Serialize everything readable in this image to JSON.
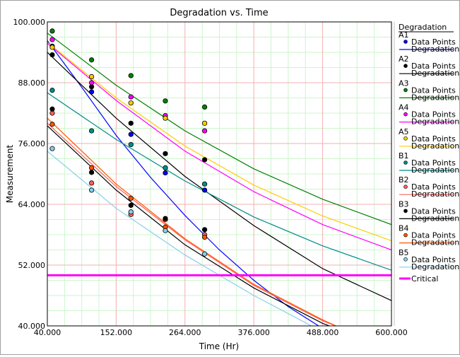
{
  "chart_data": {
    "type": "scatter",
    "title": "Degradation vs. Time",
    "xlabel": "Time (Hr)",
    "ylabel": "Measurement",
    "xlim": [
      40,
      600
    ],
    "ylim": [
      40,
      100
    ],
    "x_ticks": [
      "40.000",
      "152.000",
      "264.000",
      "376.000",
      "488.000",
      "600.000"
    ],
    "y_ticks": [
      "40.000",
      "52.000",
      "64.000",
      "76.000",
      "88.000",
      "100.000"
    ],
    "grid": true,
    "legend_title": "Degradation",
    "legend_position": "right",
    "point_label": "Data Points",
    "line_label": "Degradation",
    "critical": {
      "name": "Critical",
      "value": 50,
      "color": "#ff00ff"
    },
    "series": [
      {
        "name": "A1",
        "color": "#0000ff",
        "points": [
          [
            48,
            95.2
          ],
          [
            112,
            86.2
          ],
          [
            176,
            77.8
          ],
          [
            232,
            70.2
          ],
          [
            296,
            66.8
          ]
        ],
        "fit": [
          [
            40,
            96.3
          ],
          [
            96,
            87.1
          ],
          [
            152,
            77.6
          ],
          [
            208,
            69.3
          ],
          [
            264,
            61.8
          ],
          [
            320,
            55.0
          ],
          [
            376,
            49.0
          ],
          [
            432,
            43.8
          ],
          [
            488,
            39.5
          ]
        ]
      },
      {
        "name": "A2",
        "color": "#000000",
        "points": [
          [
            48,
            93.5
          ],
          [
            112,
            87.2
          ],
          [
            176,
            80.0
          ],
          [
            232,
            74.0
          ],
          [
            296,
            72.8
          ]
        ],
        "fit": [
          [
            40,
            94.0
          ],
          [
            152,
            81.0
          ],
          [
            264,
            69.5
          ],
          [
            376,
            59.8
          ],
          [
            488,
            51.3
          ],
          [
            600,
            45.0
          ]
        ]
      },
      {
        "name": "A3",
        "color": "#008000",
        "points": [
          [
            48,
            98.2
          ],
          [
            112,
            92.5
          ],
          [
            176,
            89.4
          ],
          [
            232,
            84.4
          ],
          [
            296,
            83.2
          ]
        ],
        "fit": [
          [
            40,
            97.8
          ],
          [
            152,
            87.5
          ],
          [
            264,
            78.5
          ],
          [
            376,
            71.0
          ],
          [
            488,
            65.0
          ],
          [
            600,
            60.0
          ]
        ]
      },
      {
        "name": "A4",
        "color": "#ff00ff",
        "points": [
          [
            48,
            96.5
          ],
          [
            112,
            88.0
          ],
          [
            176,
            85.2
          ],
          [
            232,
            81.5
          ],
          [
            296,
            78.5
          ]
        ],
        "fit": [
          [
            40,
            95.8
          ],
          [
            152,
            84.5
          ],
          [
            264,
            74.5
          ],
          [
            376,
            66.5
          ],
          [
            488,
            60.0
          ],
          [
            600,
            55.0
          ]
        ]
      },
      {
        "name": "A5",
        "color": "#ffcc00",
        "points": [
          [
            48,
            95.0
          ],
          [
            112,
            89.2
          ],
          [
            176,
            84.0
          ],
          [
            232,
            81.0
          ],
          [
            296,
            80.0
          ]
        ],
        "fit": [
          [
            40,
            96.0
          ],
          [
            152,
            85.0
          ],
          [
            264,
            75.5
          ],
          [
            376,
            67.8
          ],
          [
            488,
            61.7
          ],
          [
            600,
            56.8
          ]
        ]
      },
      {
        "name": "B1",
        "color": "#008b8b",
        "points": [
          [
            48,
            86.5
          ],
          [
            112,
            78.5
          ],
          [
            176,
            75.8
          ],
          [
            232,
            71.2
          ],
          [
            296,
            68.0
          ]
        ],
        "fit": [
          [
            40,
            86.0
          ],
          [
            152,
            76.8
          ],
          [
            264,
            68.6
          ],
          [
            376,
            61.5
          ],
          [
            488,
            55.8
          ],
          [
            600,
            51.0
          ]
        ]
      },
      {
        "name": "B2",
        "color": "#ff6060",
        "points": [
          [
            48,
            82.0
          ],
          [
            112,
            68.2
          ],
          [
            176,
            62.0
          ],
          [
            232,
            61.0
          ],
          [
            296,
            58.0
          ]
        ],
        "fit": [
          [
            40,
            80.0
          ],
          [
            152,
            67.5
          ],
          [
            264,
            57.0
          ],
          [
            376,
            48.0
          ],
          [
            488,
            41.0
          ],
          [
            520,
            39.5
          ]
        ]
      },
      {
        "name": "B3",
        "color": "#000000",
        "points": [
          [
            48,
            82.8
          ],
          [
            112,
            70.3
          ],
          [
            176,
            63.8
          ],
          [
            232,
            61.2
          ],
          [
            296,
            59.0
          ]
        ],
        "fit": [
          [
            40,
            79.5
          ],
          [
            152,
            66.8
          ],
          [
            264,
            56.0
          ],
          [
            376,
            47.5
          ],
          [
            488,
            40.5
          ],
          [
            510,
            39.5
          ]
        ]
      },
      {
        "name": "B4",
        "color": "#ff5500",
        "points": [
          [
            48,
            79.8
          ],
          [
            112,
            71.2
          ],
          [
            176,
            65.2
          ],
          [
            232,
            59.5
          ],
          [
            296,
            57.5
          ]
        ],
        "fit": [
          [
            40,
            81.0
          ],
          [
            152,
            68.0
          ],
          [
            264,
            57.2
          ],
          [
            376,
            48.2
          ],
          [
            488,
            41.2
          ],
          [
            510,
            40.0
          ]
        ]
      },
      {
        "name": "B5",
        "color": "#87ceeb",
        "points": [
          [
            48,
            75.0
          ],
          [
            112,
            66.8
          ],
          [
            176,
            62.5
          ],
          [
            232,
            58.8
          ],
          [
            296,
            54.2
          ]
        ],
        "fit": [
          [
            40,
            74.5
          ],
          [
            152,
            63.2
          ],
          [
            264,
            54.0
          ],
          [
            376,
            46.0
          ],
          [
            470,
            40.0
          ]
        ]
      }
    ]
  }
}
